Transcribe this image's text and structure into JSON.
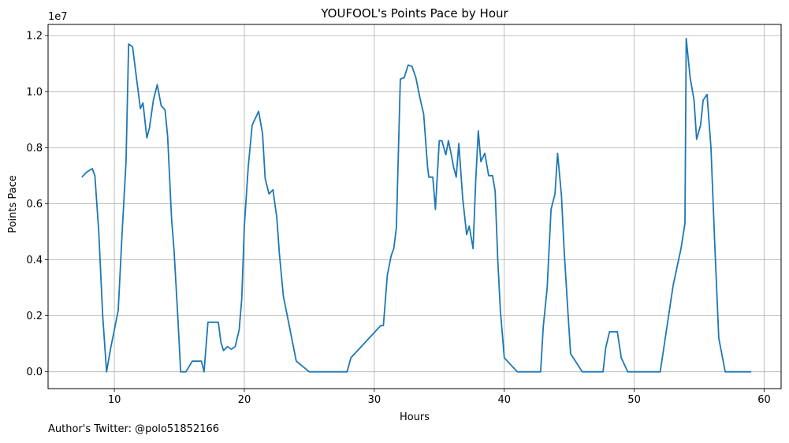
{
  "chart_data": {
    "type": "line",
    "title": "YOUFOOL's Points Pace by Hour",
    "xlabel": "Hours",
    "ylabel": "Points Pace",
    "y_offset_label": "1e7",
    "xlim": [
      4.9,
      61.3
    ],
    "ylim": [
      -600000,
      12400000
    ],
    "xticks": [
      10,
      20,
      30,
      40,
      50,
      60
    ],
    "yticks": [
      0,
      2000000,
      4000000,
      6000000,
      8000000,
      10000000,
      12000000
    ],
    "ytick_labels": [
      "0.0",
      "0.2",
      "0.4",
      "0.6",
      "0.8",
      "1.0",
      "1.2"
    ],
    "grid": true,
    "line_color": "#1f77b4",
    "series": [
      {
        "x": [
          7.5,
          7.8,
          8.1,
          8.3,
          8.5,
          8.8,
          9.1,
          9.4,
          9.7,
          10.0,
          10.3,
          10.6,
          10.9,
          11.1,
          11.4,
          11.7,
          12.0,
          12.2,
          12.5,
          12.7,
          13.0,
          13.3,
          13.6,
          13.9,
          14.1,
          14.4,
          14.6,
          14.9,
          15.1,
          15.5,
          16.0,
          16.4,
          16.7,
          16.9,
          17.2,
          17.5,
          17.8,
          18.0,
          18.2,
          18.4,
          18.7,
          19.0,
          19.3,
          19.6,
          19.8,
          20.0,
          20.3,
          20.6,
          20.8,
          21.1,
          21.4,
          21.6,
          21.9,
          22.2,
          22.5,
          22.7,
          23.0,
          24.0,
          25.0,
          26.0,
          27.0,
          27.3,
          27.6,
          27.9,
          28.2,
          30.5,
          30.7,
          31.0,
          31.3,
          31.5,
          31.7,
          32.0,
          32.3,
          32.6,
          32.9,
          33.2,
          33.5,
          33.8,
          34.1,
          34.2,
          34.5,
          34.7,
          35.0,
          35.2,
          35.5,
          35.7,
          35.9,
          36.1,
          36.3,
          36.5,
          36.8,
          37.1,
          37.3,
          37.6,
          37.8,
          38.0,
          38.2,
          38.5,
          38.8,
          39.1,
          39.3,
          39.5,
          39.7,
          40.0,
          41.0,
          42.0,
          42.5,
          42.8,
          43.0,
          43.3,
          43.6,
          43.9,
          44.1,
          44.4,
          44.6,
          44.9,
          45.1,
          46.0,
          47.0,
          47.3,
          47.6,
          47.8,
          48.1,
          48.4,
          48.7,
          49.0,
          49.5,
          52.0,
          53.0,
          53.6,
          53.9,
          54.0,
          54.3,
          54.6,
          54.8,
          55.1,
          55.3,
          55.6,
          55.9,
          56.2,
          56.5,
          57.0,
          58.0,
          59.0
        ],
        "y": [
          6950000,
          7100000,
          7200000,
          7250000,
          7000000,
          5000000,
          2000000,
          0,
          800000,
          1500000,
          2200000,
          5000000,
          7500000,
          11700000,
          11600000,
          10500000,
          9400000,
          9600000,
          8350000,
          8700000,
          9700000,
          10250000,
          9500000,
          9350000,
          8400000,
          5500000,
          4300000,
          1800000,
          0,
          0,
          380000,
          380000,
          380000,
          0,
          1770000,
          1770000,
          1770000,
          1770000,
          1050000,
          760000,
          900000,
          800000,
          900000,
          1500000,
          2600000,
          5200000,
          7300000,
          8800000,
          9000000,
          9300000,
          8500000,
          6900000,
          6350000,
          6500000,
          5500000,
          4200000,
          2700000,
          380000,
          0,
          0,
          0,
          0,
          0,
          0,
          500000,
          1650000,
          1650000,
          3450000,
          4150000,
          4400000,
          5150000,
          10450000,
          10500000,
          10950000,
          10900000,
          10500000,
          9800000,
          9200000,
          7300000,
          6950000,
          6950000,
          5800000,
          8250000,
          8250000,
          7750000,
          8250000,
          7800000,
          7300000,
          6950000,
          8150000,
          6200000,
          4900000,
          5200000,
          4400000,
          6800000,
          8600000,
          7500000,
          7800000,
          7000000,
          7000000,
          6450000,
          4000000,
          2200000,
          500000,
          0,
          0,
          0,
          0,
          1600000,
          3000000,
          5800000,
          6350000,
          7800000,
          6300000,
          4400000,
          2100000,
          650000,
          0,
          0,
          0,
          0,
          850000,
          1430000,
          1430000,
          1430000,
          500000,
          0,
          0,
          3100000,
          4400000,
          5300000,
          11900000,
          10500000,
          9700000,
          8300000,
          8800000,
          9700000,
          9900000,
          8000000,
          4500000,
          1200000,
          0,
          0,
          0
        ]
      }
    ]
  },
  "footer_text": "Author's Twitter: @polo51852166"
}
